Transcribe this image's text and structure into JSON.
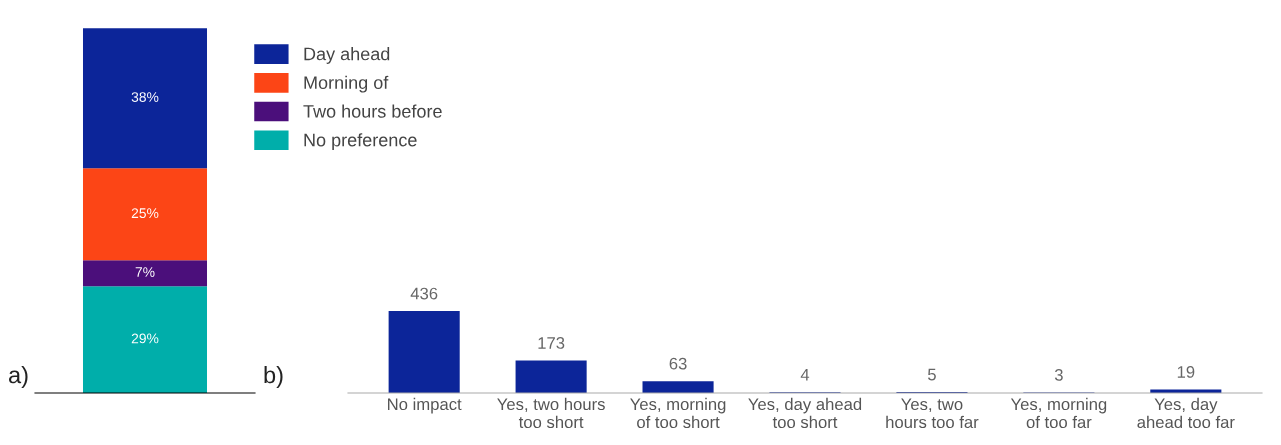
{
  "chart_data": [
    {
      "type": "bar",
      "stacked": true,
      "categories": [
        null
      ],
      "legend": "right",
      "annotations": [
        "a)"
      ],
      "series": [
        {
          "name": "No preference",
          "color": "#00aeaa",
          "values": [
            29
          ],
          "value_labels": [
            "29%"
          ]
        },
        {
          "name": "Two hours before",
          "color": "#4b0f7b",
          "values": [
            7
          ],
          "value_labels": [
            "7%"
          ]
        },
        {
          "name": "Morning of",
          "color": "#fc4516",
          "values": [
            25
          ],
          "value_labels": [
            "25%"
          ]
        },
        {
          "name": "Day ahead",
          "color": "#0c2599",
          "values": [
            38
          ],
          "value_labels": [
            "38%"
          ]
        }
      ]
    },
    {
      "type": "bar",
      "categories": [
        "No impact",
        "Yes, two hours\ntoo short",
        "Yes, morning\nof too short",
        "Yes, day ahead\ntoo short",
        "Yes, two\nhours too far",
        "Yes, morning\nof too far",
        "Yes, day\nahead too far"
      ],
      "values": [
        436,
        173,
        63,
        4,
        5,
        3,
        19
      ],
      "color": "#0c2599",
      "data_labels": true,
      "tick_labels": "x",
      "annotations": [
        "b)"
      ]
    }
  ]
}
